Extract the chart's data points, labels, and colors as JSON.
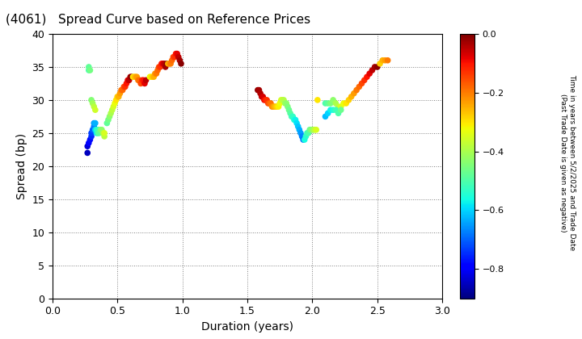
{
  "title": "(4061)   Spread Curve based on Reference Prices",
  "xlabel": "Duration (years)",
  "ylabel": "Spread (bp)",
  "colorbar_label_line1": "Time in years between 5/2/2025 and Trade Date",
  "colorbar_label_line2": "(Past Trade Date is given as negative)",
  "xlim": [
    0.0,
    3.0
  ],
  "ylim": [
    0,
    40
  ],
  "xticks": [
    0.0,
    0.5,
    1.0,
    1.5,
    2.0,
    2.5,
    3.0
  ],
  "yticks": [
    0,
    5,
    10,
    15,
    20,
    25,
    30,
    35,
    40
  ],
  "colorbar_ticks": [
    0.0,
    -0.2,
    -0.4,
    -0.6,
    -0.8
  ],
  "cmap": "jet",
  "clim": [
    -0.9,
    0.0
  ],
  "points": [
    [
      0.27,
      22.0,
      -0.85
    ],
    [
      0.27,
      23.0,
      -0.83
    ],
    [
      0.28,
      23.5,
      -0.8
    ],
    [
      0.29,
      24.0,
      -0.78
    ],
    [
      0.3,
      24.5,
      -0.75
    ],
    [
      0.3,
      25.0,
      -0.73
    ],
    [
      0.31,
      25.5,
      -0.7
    ],
    [
      0.32,
      26.0,
      -0.68
    ],
    [
      0.32,
      26.5,
      -0.65
    ],
    [
      0.33,
      26.5,
      -0.63
    ],
    [
      0.33,
      25.5,
      -0.6
    ],
    [
      0.34,
      25.0,
      -0.58
    ],
    [
      0.34,
      25.5,
      -0.55
    ],
    [
      0.35,
      25.5,
      -0.53
    ],
    [
      0.35,
      25.0,
      -0.5
    ],
    [
      0.36,
      25.0,
      -0.48
    ],
    [
      0.37,
      25.5,
      -0.45
    ],
    [
      0.38,
      25.5,
      -0.43
    ],
    [
      0.39,
      25.0,
      -0.4
    ],
    [
      0.4,
      24.5,
      -0.38
    ],
    [
      0.4,
      25.0,
      -0.35
    ],
    [
      0.28,
      34.5,
      -0.5
    ],
    [
      0.28,
      35.0,
      -0.48
    ],
    [
      0.29,
      34.5,
      -0.46
    ],
    [
      0.3,
      30.0,
      -0.44
    ],
    [
      0.31,
      29.5,
      -0.41
    ],
    [
      0.32,
      29.0,
      -0.38
    ],
    [
      0.33,
      28.5,
      -0.36
    ],
    [
      0.42,
      26.5,
      -0.48
    ],
    [
      0.43,
      27.0,
      -0.46
    ],
    [
      0.44,
      27.5,
      -0.43
    ],
    [
      0.45,
      28.0,
      -0.4
    ],
    [
      0.46,
      28.5,
      -0.38
    ],
    [
      0.47,
      29.0,
      -0.35
    ],
    [
      0.48,
      29.5,
      -0.33
    ],
    [
      0.49,
      30.0,
      -0.3
    ],
    [
      0.5,
      30.5,
      -0.28
    ],
    [
      0.51,
      30.5,
      -0.25
    ],
    [
      0.52,
      31.0,
      -0.23
    ],
    [
      0.53,
      31.5,
      -0.2
    ],
    [
      0.54,
      31.5,
      -0.18
    ],
    [
      0.55,
      32.0,
      -0.15
    ],
    [
      0.56,
      32.0,
      -0.13
    ],
    [
      0.57,
      32.5,
      -0.1
    ],
    [
      0.58,
      33.0,
      -0.08
    ],
    [
      0.59,
      33.0,
      -0.05
    ],
    [
      0.6,
      33.5,
      -0.03
    ],
    [
      0.61,
      33.5,
      -0.01
    ],
    [
      0.62,
      33.5,
      -0.3
    ],
    [
      0.63,
      33.5,
      -0.28
    ],
    [
      0.64,
      33.5,
      -0.25
    ],
    [
      0.65,
      33.5,
      -0.23
    ],
    [
      0.66,
      33.0,
      -0.2
    ],
    [
      0.67,
      33.0,
      -0.18
    ],
    [
      0.68,
      32.5,
      -0.15
    ],
    [
      0.69,
      33.0,
      -0.13
    ],
    [
      0.7,
      33.0,
      -0.1
    ],
    [
      0.71,
      32.5,
      -0.08
    ],
    [
      0.72,
      33.0,
      -0.05
    ],
    [
      0.75,
      33.5,
      -0.33
    ],
    [
      0.76,
      33.5,
      -0.3
    ],
    [
      0.77,
      33.5,
      -0.28
    ],
    [
      0.78,
      33.5,
      -0.25
    ],
    [
      0.79,
      34.0,
      -0.23
    ],
    [
      0.8,
      34.0,
      -0.2
    ],
    [
      0.81,
      34.5,
      -0.18
    ],
    [
      0.82,
      35.0,
      -0.15
    ],
    [
      0.83,
      35.0,
      -0.13
    ],
    [
      0.84,
      35.5,
      -0.1
    ],
    [
      0.85,
      35.5,
      -0.08
    ],
    [
      0.86,
      35.5,
      -0.05
    ],
    [
      0.87,
      35.0,
      -0.03
    ],
    [
      0.88,
      35.5,
      -0.01
    ],
    [
      0.89,
      35.5,
      -0.25
    ],
    [
      0.9,
      35.5,
      -0.23
    ],
    [
      0.91,
      35.5,
      -0.2
    ],
    [
      0.92,
      36.0,
      -0.18
    ],
    [
      0.93,
      36.5,
      -0.15
    ],
    [
      0.94,
      36.5,
      -0.13
    ],
    [
      0.95,
      37.0,
      -0.1
    ],
    [
      0.96,
      37.0,
      -0.08
    ],
    [
      0.97,
      36.5,
      -0.05
    ],
    [
      0.98,
      36.0,
      -0.03
    ],
    [
      0.99,
      35.5,
      -0.01
    ],
    [
      1.58,
      31.5,
      -0.02
    ],
    [
      1.59,
      31.5,
      -0.03
    ],
    [
      1.6,
      31.0,
      -0.04
    ],
    [
      1.61,
      30.5,
      -0.05
    ],
    [
      1.62,
      30.5,
      -0.07
    ],
    [
      1.63,
      30.0,
      -0.09
    ],
    [
      1.64,
      30.0,
      -0.11
    ],
    [
      1.65,
      30.0,
      -0.13
    ],
    [
      1.66,
      29.5,
      -0.15
    ],
    [
      1.67,
      29.5,
      -0.17
    ],
    [
      1.68,
      29.5,
      -0.19
    ],
    [
      1.69,
      29.0,
      -0.21
    ],
    [
      1.7,
      29.0,
      -0.23
    ],
    [
      1.71,
      29.0,
      -0.25
    ],
    [
      1.72,
      29.0,
      -0.27
    ],
    [
      1.73,
      29.0,
      -0.29
    ],
    [
      1.74,
      29.0,
      -0.31
    ],
    [
      1.75,
      29.5,
      -0.33
    ],
    [
      1.76,
      30.0,
      -0.35
    ],
    [
      1.77,
      30.0,
      -0.37
    ],
    [
      1.78,
      30.0,
      -0.39
    ],
    [
      1.79,
      29.5,
      -0.41
    ],
    [
      1.8,
      29.5,
      -0.43
    ],
    [
      1.81,
      29.0,
      -0.45
    ],
    [
      1.82,
      28.5,
      -0.47
    ],
    [
      1.83,
      28.0,
      -0.49
    ],
    [
      1.84,
      27.5,
      -0.51
    ],
    [
      1.85,
      27.5,
      -0.53
    ],
    [
      1.86,
      27.0,
      -0.55
    ],
    [
      1.87,
      27.0,
      -0.57
    ],
    [
      1.88,
      26.5,
      -0.59
    ],
    [
      1.89,
      26.0,
      -0.61
    ],
    [
      1.9,
      25.5,
      -0.63
    ],
    [
      1.91,
      25.0,
      -0.65
    ],
    [
      1.92,
      24.5,
      -0.67
    ],
    [
      1.93,
      24.0,
      -0.69
    ],
    [
      1.94,
      24.0,
      -0.56
    ],
    [
      1.95,
      24.5,
      -0.54
    ],
    [
      1.96,
      25.0,
      -0.52
    ],
    [
      1.97,
      25.0,
      -0.5
    ],
    [
      1.98,
      25.5,
      -0.47
    ],
    [
      1.99,
      25.5,
      -0.45
    ],
    [
      2.0,
      25.5,
      -0.43
    ],
    [
      2.01,
      25.5,
      -0.4
    ],
    [
      2.02,
      25.5,
      -0.38
    ],
    [
      2.03,
      25.5,
      -0.35
    ],
    [
      2.04,
      30.0,
      -0.3
    ],
    [
      2.1,
      29.5,
      -0.5
    ],
    [
      2.12,
      29.5,
      -0.48
    ],
    [
      2.14,
      29.5,
      -0.45
    ],
    [
      2.16,
      30.0,
      -0.43
    ],
    [
      2.18,
      29.5,
      -0.4
    ],
    [
      2.2,
      29.0,
      -0.38
    ],
    [
      2.22,
      29.0,
      -0.35
    ],
    [
      2.24,
      29.5,
      -0.33
    ],
    [
      2.26,
      29.5,
      -0.3
    ],
    [
      2.28,
      30.0,
      -0.28
    ],
    [
      2.3,
      30.5,
      -0.25
    ],
    [
      2.32,
      31.0,
      -0.23
    ],
    [
      2.34,
      31.5,
      -0.2
    ],
    [
      2.36,
      32.0,
      -0.18
    ],
    [
      2.38,
      32.5,
      -0.15
    ],
    [
      2.4,
      33.0,
      -0.13
    ],
    [
      2.42,
      33.5,
      -0.1
    ],
    [
      2.44,
      34.0,
      -0.08
    ],
    [
      2.46,
      34.5,
      -0.05
    ],
    [
      2.48,
      35.0,
      -0.03
    ],
    [
      2.5,
      35.0,
      -0.01
    ],
    [
      2.52,
      35.5,
      -0.28
    ],
    [
      2.54,
      36.0,
      -0.25
    ],
    [
      2.56,
      36.0,
      -0.23
    ],
    [
      2.58,
      36.0,
      -0.2
    ],
    [
      2.1,
      27.5,
      -0.62
    ],
    [
      2.12,
      28.0,
      -0.6
    ],
    [
      2.14,
      28.5,
      -0.57
    ],
    [
      2.16,
      28.5,
      -0.55
    ],
    [
      2.18,
      28.5,
      -0.52
    ],
    [
      2.2,
      28.0,
      -0.5
    ],
    [
      2.22,
      28.5,
      -0.47
    ]
  ]
}
